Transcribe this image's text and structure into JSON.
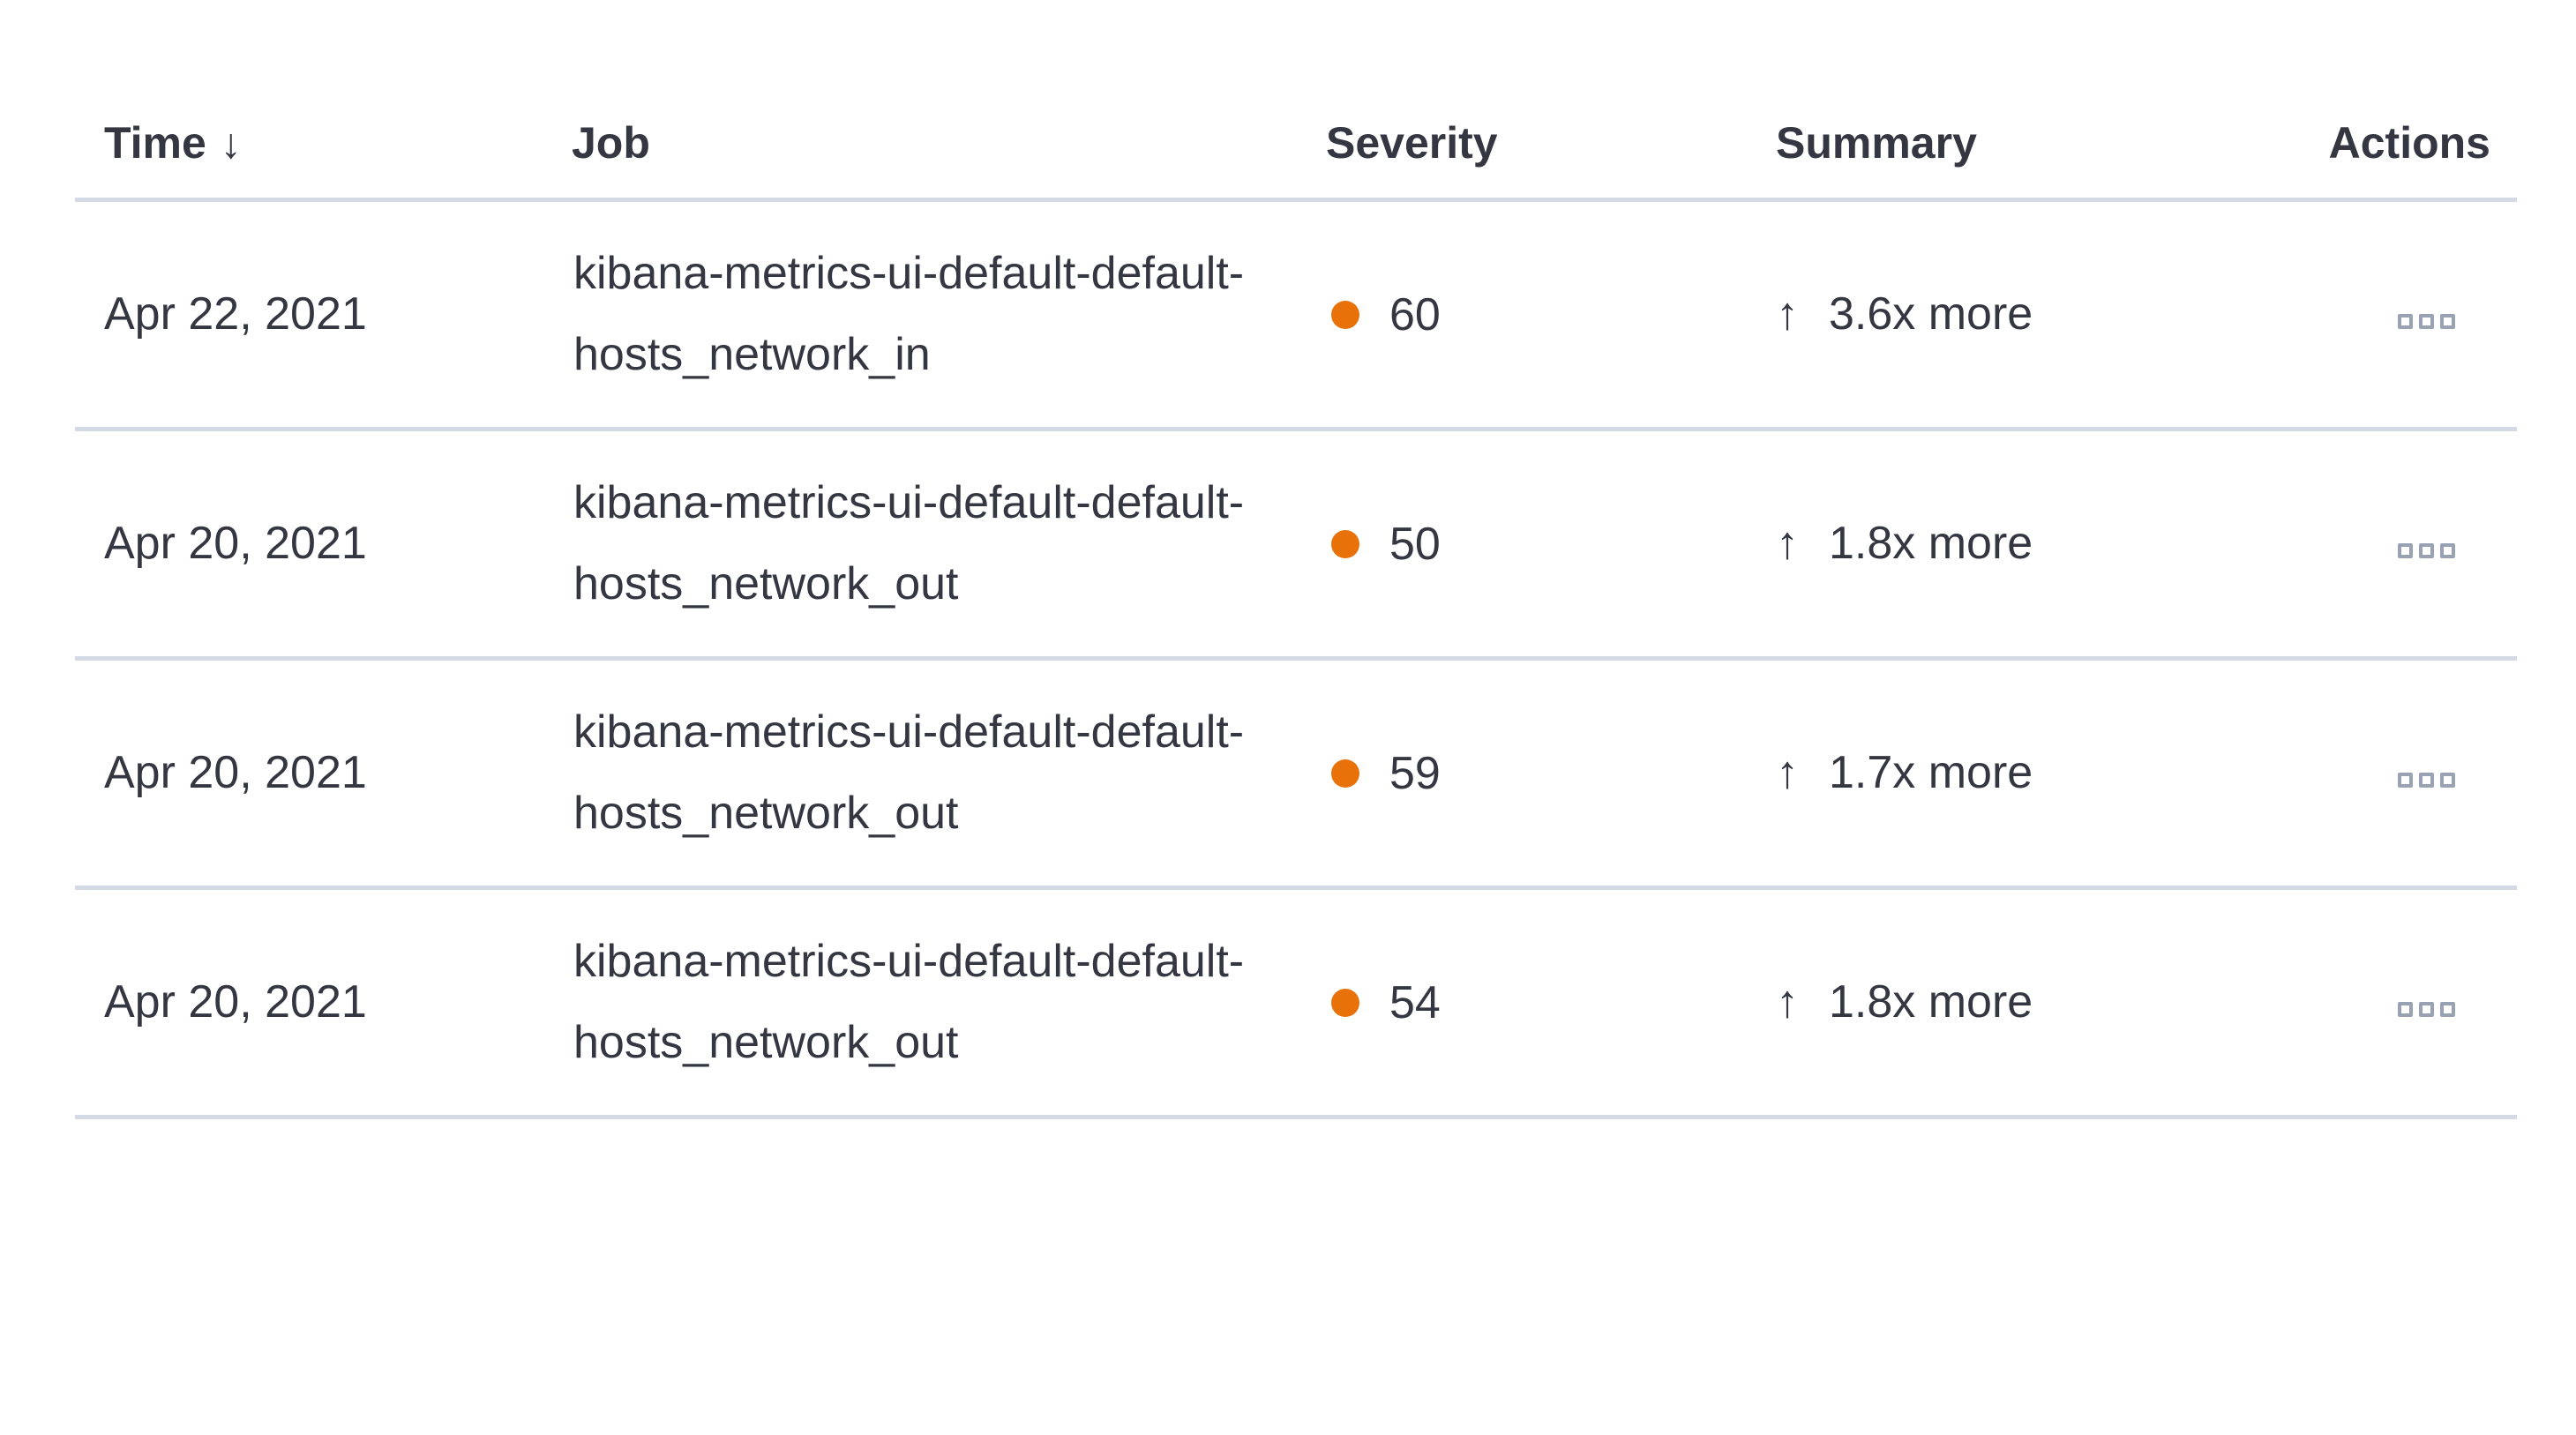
{
  "table": {
    "columns": [
      {
        "key": "time",
        "label": "Time",
        "sorted": "descending"
      },
      {
        "key": "job",
        "label": "Job"
      },
      {
        "key": "severity",
        "label": "Severity"
      },
      {
        "key": "summary",
        "label": "Summary"
      },
      {
        "key": "actions",
        "label": "Actions"
      }
    ],
    "icons": {
      "sort_descending": "↓",
      "trend_up": "↑",
      "actions": "boxes-horizontal"
    },
    "rows": [
      {
        "time": "Apr 22, 2021",
        "job": "kibana-metrics-ui-default-default-hosts_network_in",
        "severity": "60",
        "summary": "3.6x more"
      },
      {
        "time": "Apr 20, 2021",
        "job": "kibana-metrics-ui-default-default-hosts_network_out",
        "severity": "50",
        "summary": "1.8x more"
      },
      {
        "time": "Apr 20, 2021",
        "job": "kibana-metrics-ui-default-default-hosts_network_out",
        "severity": "59",
        "summary": "1.7x more"
      },
      {
        "time": "Apr 20, 2021",
        "job": "kibana-metrics-ui-default-default-hosts_network_out",
        "severity": "54",
        "summary": "1.8x more"
      }
    ],
    "colors": {
      "severity_dot": "#e8710a",
      "text": "#343741",
      "divider": "#d3dae6",
      "actions_icon": "#98a2b3"
    }
  }
}
